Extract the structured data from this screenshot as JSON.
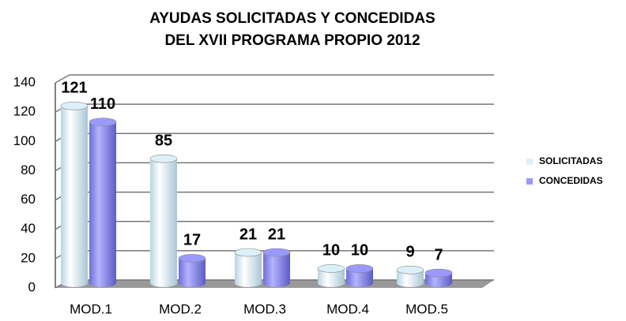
{
  "chart_data": {
    "type": "bar",
    "title": "AYUDAS SOLICITADAS Y CONCEDIDAS\nDEL XVII PROGRAMA PROPIO 2012",
    "categories": [
      "MOD.1",
      "MOD.2",
      "MOD.3",
      "MOD.4",
      "MOD.5"
    ],
    "series": [
      {
        "name": "SOLICITADAS",
        "color": "#dcf0fa",
        "values": [
          121,
          85,
          21,
          10,
          9
        ]
      },
      {
        "name": "CONCEDIDAS",
        "color": "#9999ff",
        "values": [
          110,
          17,
          21,
          10,
          7
        ]
      }
    ],
    "ylim": [
      0,
      140
    ],
    "yticks": [
      0,
      20,
      40,
      60,
      80,
      100,
      120,
      140
    ],
    "grid": true,
    "legend": "right"
  }
}
